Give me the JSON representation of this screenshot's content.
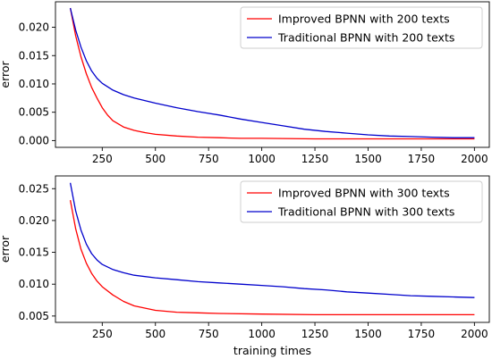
{
  "chart_data": [
    {
      "type": "line",
      "title": "",
      "xlabel": "",
      "ylabel": "error",
      "xlim": [
        30,
        2070
      ],
      "ylim": [
        -0.0012,
        0.0245
      ],
      "xticks": [
        "250",
        "500",
        "750",
        "1000",
        "1250",
        "1500",
        "1750",
        "2000"
      ],
      "xtick_values": [
        250,
        500,
        750,
        1000,
        1250,
        1500,
        1750,
        2000
      ],
      "yticks": [
        "0.000",
        "0.005",
        "0.010",
        "0.015",
        "0.020"
      ],
      "ytick_values": [
        0.0,
        0.005,
        0.01,
        0.015,
        0.02
      ],
      "grid": false,
      "legend_position": "top-right",
      "series": [
        {
          "name": "Improved BPNN with 200 texts",
          "color": "#ff0000",
          "x": [
            100,
            125,
            150,
            175,
            200,
            225,
            250,
            275,
            300,
            350,
            400,
            450,
            500,
            600,
            700,
            800,
            900,
            1000,
            1250,
            1500,
            1750,
            2000
          ],
          "y": [
            0.0234,
            0.0185,
            0.0148,
            0.0118,
            0.0094,
            0.0075,
            0.0058,
            0.0045,
            0.0035,
            0.0024,
            0.0018,
            0.0014,
            0.0011,
            0.0008,
            0.0006,
            0.0005,
            0.0004,
            0.0004,
            0.0003,
            0.0003,
            0.0003,
            0.0003
          ]
        },
        {
          "name": "Traditional BPNN with 200 texts",
          "color": "#0000cc",
          "x": [
            100,
            125,
            150,
            175,
            200,
            225,
            250,
            300,
            350,
            400,
            500,
            600,
            700,
            800,
            900,
            1000,
            1100,
            1200,
            1300,
            1400,
            1500,
            1600,
            1700,
            1800,
            1900,
            2000
          ],
          "y": [
            0.0234,
            0.0195,
            0.0165,
            0.0141,
            0.0123,
            0.011,
            0.0101,
            0.0089,
            0.0081,
            0.0075,
            0.0066,
            0.0058,
            0.0051,
            0.0045,
            0.0038,
            0.0032,
            0.0026,
            0.002,
            0.0016,
            0.0013,
            0.001,
            0.0008,
            0.0007,
            0.0006,
            0.0005,
            0.0005
          ]
        }
      ]
    },
    {
      "type": "line",
      "title": "",
      "xlabel": "training times",
      "ylabel": "error",
      "xlim": [
        30,
        2070
      ],
      "ylim": [
        0.004,
        0.027
      ],
      "xticks": [
        "250",
        "500",
        "750",
        "1000",
        "1250",
        "1500",
        "1750",
        "2000"
      ],
      "xtick_values": [
        250,
        500,
        750,
        1000,
        1250,
        1500,
        1750,
        2000
      ],
      "yticks": [
        "0.005",
        "0.010",
        "0.015",
        "0.020",
        "0.025"
      ],
      "ytick_values": [
        0.005,
        0.01,
        0.015,
        0.02,
        0.025
      ],
      "grid": false,
      "legend_position": "top-right",
      "series": [
        {
          "name": "Improved BPNN with 300 texts",
          "color": "#ff0000",
          "x": [
            100,
            125,
            150,
            175,
            200,
            225,
            250,
            300,
            350,
            400,
            500,
            600,
            700,
            800,
            1000,
            1250,
            1500,
            1750,
            2000
          ],
          "y": [
            0.0232,
            0.0187,
            0.0155,
            0.0133,
            0.0117,
            0.0105,
            0.0096,
            0.0083,
            0.0073,
            0.0066,
            0.0059,
            0.0056,
            0.0055,
            0.0054,
            0.0053,
            0.0052,
            0.0052,
            0.0052,
            0.0052
          ]
        },
        {
          "name": "Traditional BPNN with 300 texts",
          "color": "#0000cc",
          "x": [
            100,
            125,
            150,
            175,
            200,
            225,
            250,
            300,
            350,
            400,
            500,
            600,
            700,
            800,
            900,
            1000,
            1100,
            1200,
            1300,
            1400,
            1500,
            1600,
            1700,
            1800,
            1900,
            2000
          ],
          "y": [
            0.0259,
            0.0215,
            0.0185,
            0.0163,
            0.0148,
            0.0138,
            0.0131,
            0.0123,
            0.0118,
            0.0114,
            0.011,
            0.0107,
            0.0104,
            0.0102,
            0.01,
            0.0098,
            0.0096,
            0.0093,
            0.0091,
            0.0088,
            0.0086,
            0.0084,
            0.0082,
            0.0081,
            0.008,
            0.0079
          ]
        }
      ]
    }
  ]
}
